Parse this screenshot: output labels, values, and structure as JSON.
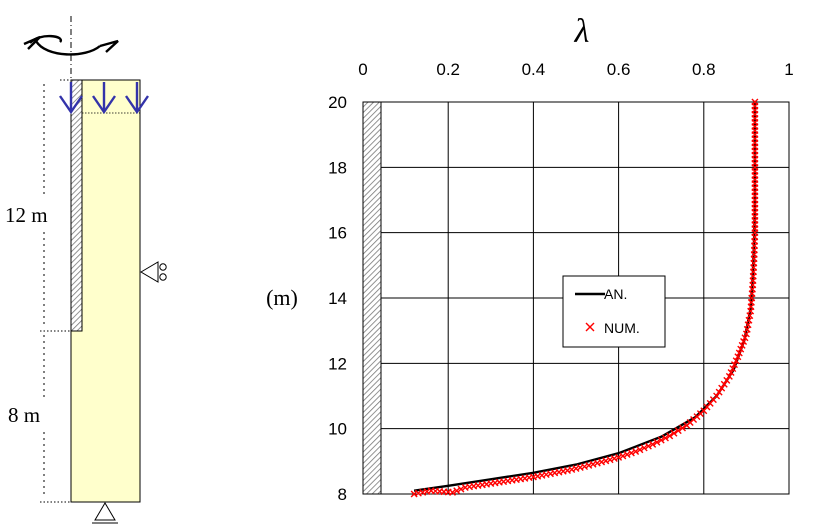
{
  "schematic": {
    "upper_length_label": "12 m",
    "lower_length_label": "8 m",
    "colors": {
      "soil": "#ffffcc",
      "arrows": "#3333aa",
      "wall_hatch": "#888888"
    },
    "icons": [
      "rotation-arrow-icon",
      "downward-load-arrow-icon",
      "roller-support-icon"
    ]
  },
  "chart_data": {
    "type": "line",
    "title": "λ",
    "xlabel": "λ",
    "ylabel": "(m)",
    "xlim": [
      0,
      1
    ],
    "ylim": [
      8,
      20
    ],
    "x_ticks": [
      "0",
      "0.2",
      "0.4",
      "0.6",
      "0.8",
      "1"
    ],
    "y_ticks": [
      "8",
      "10",
      "12",
      "14",
      "16",
      "18",
      "20"
    ],
    "x_axis_position": "top",
    "grid": true,
    "legend": {
      "placement": "center",
      "entries": [
        "AN.",
        "NUM."
      ]
    },
    "series": [
      {
        "name": "AN.",
        "color": "#000000",
        "style": "line",
        "points": [
          [
            0.12,
            8.1
          ],
          [
            0.2,
            8.25
          ],
          [
            0.3,
            8.45
          ],
          [
            0.4,
            8.65
          ],
          [
            0.5,
            8.9
          ],
          [
            0.6,
            9.25
          ],
          [
            0.7,
            9.75
          ],
          [
            0.78,
            10.35
          ],
          [
            0.83,
            11.0
          ],
          [
            0.87,
            11.8
          ],
          [
            0.895,
            12.7
          ],
          [
            0.91,
            13.7
          ],
          [
            0.915,
            14.7
          ],
          [
            0.918,
            15.8
          ],
          [
            0.92,
            17.0
          ],
          [
            0.92,
            18.5
          ],
          [
            0.92,
            20.0
          ]
        ]
      },
      {
        "name": "NUM.",
        "color": "#ff0000",
        "style": "markers",
        "marker": "x",
        "points": [
          [
            0.12,
            8.0
          ],
          [
            0.16,
            8.1
          ],
          [
            0.21,
            8.05
          ],
          [
            0.24,
            8.2
          ],
          [
            0.28,
            8.28
          ],
          [
            0.32,
            8.36
          ],
          [
            0.36,
            8.44
          ],
          [
            0.4,
            8.52
          ],
          [
            0.44,
            8.62
          ],
          [
            0.48,
            8.72
          ],
          [
            0.52,
            8.84
          ],
          [
            0.56,
            8.98
          ],
          [
            0.6,
            9.12
          ],
          [
            0.64,
            9.3
          ],
          [
            0.68,
            9.52
          ],
          [
            0.72,
            9.78
          ],
          [
            0.76,
            10.1
          ],
          [
            0.8,
            10.55
          ],
          [
            0.83,
            11.0
          ],
          [
            0.86,
            11.6
          ],
          [
            0.88,
            12.2
          ],
          [
            0.9,
            12.9
          ],
          [
            0.91,
            13.6
          ],
          [
            0.915,
            14.4
          ],
          [
            0.918,
            15.2
          ],
          [
            0.92,
            16.0
          ],
          [
            0.92,
            17.0
          ],
          [
            0.92,
            18.0
          ],
          [
            0.92,
            19.0
          ],
          [
            0.92,
            20.0
          ]
        ]
      }
    ]
  }
}
